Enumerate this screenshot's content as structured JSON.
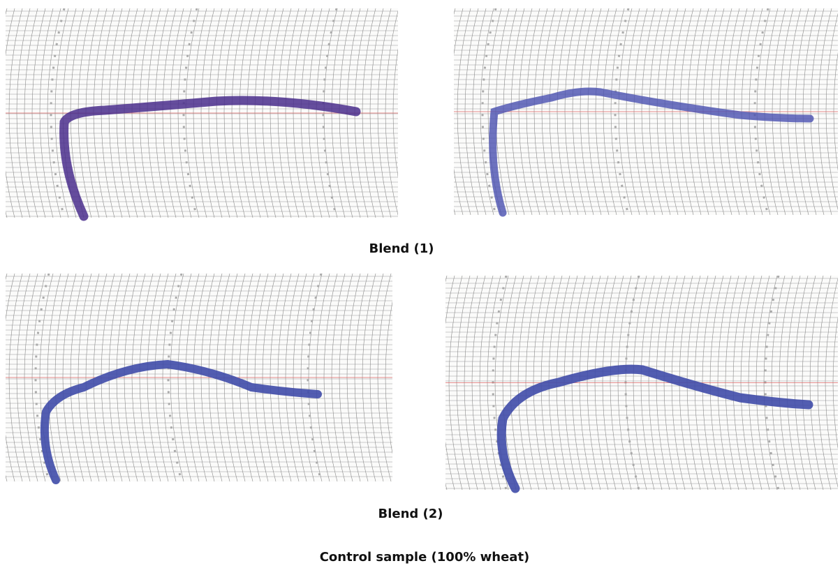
{
  "captions": [
    "Blend (1)",
    "Blend (2)",
    "Control sample (100% wheat)"
  ]
}
